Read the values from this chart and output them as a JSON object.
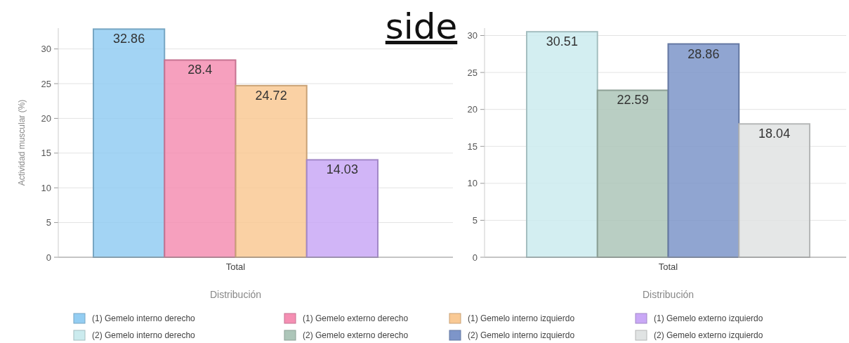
{
  "chart_data": [
    {
      "type": "bar",
      "ylabel": "Actividad muscular (%)",
      "xlabel": "Distribución",
      "categories": [
        "Total"
      ],
      "ylim": [
        0,
        33
      ],
      "yticks": [
        0,
        5,
        10,
        15,
        20,
        25,
        30
      ],
      "grid": "y",
      "legend": "bottom",
      "data_labels": true,
      "annotations": [
        "side"
      ],
      "series": [
        {
          "name": "(1) Gemelo interno derecho",
          "color": "#93cdf2",
          "values": [
            32.86
          ]
        },
        {
          "name": "(1) Gemelo externo derecho",
          "color": "#f58fb3",
          "values": [
            28.4
          ]
        },
        {
          "name": "(1) Gemelo interno izquierdo",
          "color": "#f9c994",
          "values": [
            24.72
          ]
        },
        {
          "name": "(1) Gemelo externo izquierdo",
          "color": "#c9a8f6",
          "values": [
            14.03
          ]
        }
      ]
    },
    {
      "type": "bar",
      "xlabel": "Distribución",
      "categories": [
        "Total"
      ],
      "ylim": [
        0,
        31
      ],
      "yticks": [
        0,
        5,
        10,
        15,
        20,
        25,
        30
      ],
      "grid": "y",
      "legend": "bottom",
      "data_labels": true,
      "series": [
        {
          "name": "(2) Gemelo interno derecho",
          "color": "#cbebee",
          "values": [
            30.51
          ]
        },
        {
          "name": "(2) Gemelo externo derecho",
          "color": "#adc6b9",
          "values": [
            22.59
          ]
        },
        {
          "name": "(2) Gemelo interno izquierdo",
          "color": "#7d95c9",
          "values": [
            28.86
          ]
        },
        {
          "name": "(2) Gemelo externo izquierdo",
          "color": "#e0e3e3",
          "values": [
            18.04
          ]
        }
      ]
    }
  ]
}
